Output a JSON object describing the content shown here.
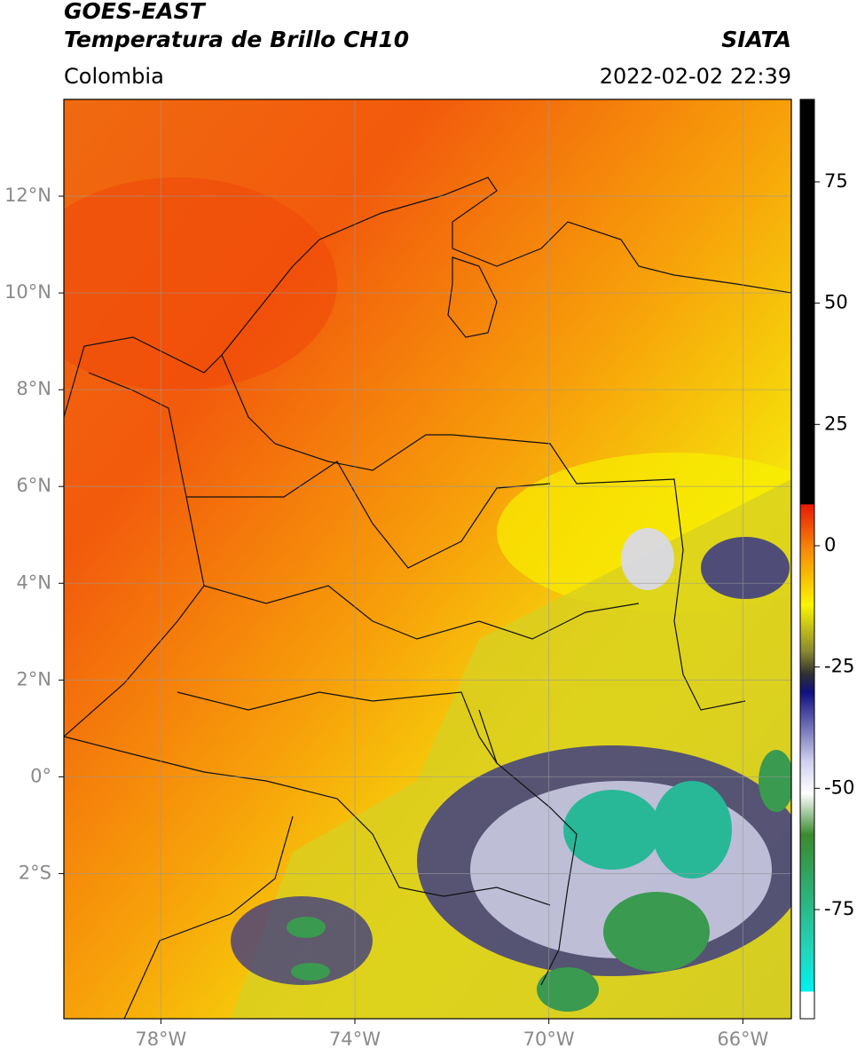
{
  "title": "GOES-EAST",
  "subtitle": "Temperatura de Brillo CH10",
  "region": "Colombia",
  "source": "SIATA",
  "datetime": "2022-02-02 22:39",
  "map": {
    "xlim": [
      -80,
      -65
    ],
    "ylim": [
      -5,
      14
    ],
    "grid": true,
    "xticks": [
      {
        "value": -78,
        "label": "78°W"
      },
      {
        "value": -74,
        "label": "74°W"
      },
      {
        "value": -70,
        "label": "70°W"
      },
      {
        "value": -66,
        "label": "66°W"
      }
    ],
    "yticks": [
      {
        "value": 12,
        "label": "12°N"
      },
      {
        "value": 10,
        "label": "10°N"
      },
      {
        "value": 8,
        "label": "8°N"
      },
      {
        "value": 6,
        "label": "6°N"
      },
      {
        "value": 4,
        "label": "4°N"
      },
      {
        "value": 2,
        "label": "2°N"
      },
      {
        "value": 0,
        "label": "0°"
      },
      {
        "value": -2,
        "label": "2°S"
      }
    ]
  },
  "colorbar": {
    "lim": [
      -97.5,
      92
    ],
    "ticks": [
      75,
      50,
      25,
      0,
      -25,
      -50,
      -75
    ]
  }
}
